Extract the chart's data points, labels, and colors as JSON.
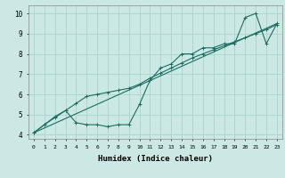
{
  "xlabel": "Humidex (Indice chaleur)",
  "ylabel": "",
  "x_ticks": [
    0,
    1,
    2,
    3,
    4,
    5,
    6,
    7,
    8,
    9,
    10,
    11,
    12,
    13,
    14,
    15,
    16,
    17,
    18,
    19,
    20,
    21,
    22,
    23
  ],
  "ylim": [
    3.8,
    10.4
  ],
  "xlim": [
    -0.5,
    23.5
  ],
  "background_color": "#cce8e4",
  "grid_color": "#aad4cf",
  "line_color": "#1a6e60",
  "line1_x": [
    0,
    1,
    2,
    3,
    4,
    5,
    6,
    7,
    8,
    9,
    10,
    11,
    12,
    13,
    14,
    15,
    16,
    17,
    18,
    19,
    20,
    21,
    22,
    23
  ],
  "line1_y": [
    4.1,
    4.5,
    4.9,
    5.2,
    4.6,
    4.5,
    4.5,
    4.4,
    4.5,
    4.5,
    5.5,
    6.7,
    7.3,
    7.5,
    8.0,
    8.0,
    8.3,
    8.3,
    8.5,
    8.5,
    9.8,
    10.0,
    8.5,
    9.5
  ],
  "line2_x": [
    0,
    1,
    2,
    3,
    4,
    5,
    6,
    7,
    8,
    9,
    10,
    11,
    12,
    13,
    14,
    15,
    16,
    17,
    18,
    19,
    20,
    21,
    22,
    23
  ],
  "line2_y": [
    4.1,
    4.5,
    4.85,
    5.2,
    5.55,
    5.9,
    6.0,
    6.1,
    6.2,
    6.3,
    6.5,
    6.8,
    7.05,
    7.3,
    7.55,
    7.8,
    8.0,
    8.2,
    8.4,
    8.6,
    8.8,
    9.0,
    9.2,
    9.45
  ],
  "line3_x": [
    0,
    23
  ],
  "line3_y": [
    4.1,
    9.5
  ],
  "ytick_labels": [
    "4",
    "5",
    "6",
    "7",
    "8",
    "9",
    "10"
  ],
  "ytick_values": [
    4,
    5,
    6,
    7,
    8,
    9,
    10
  ]
}
